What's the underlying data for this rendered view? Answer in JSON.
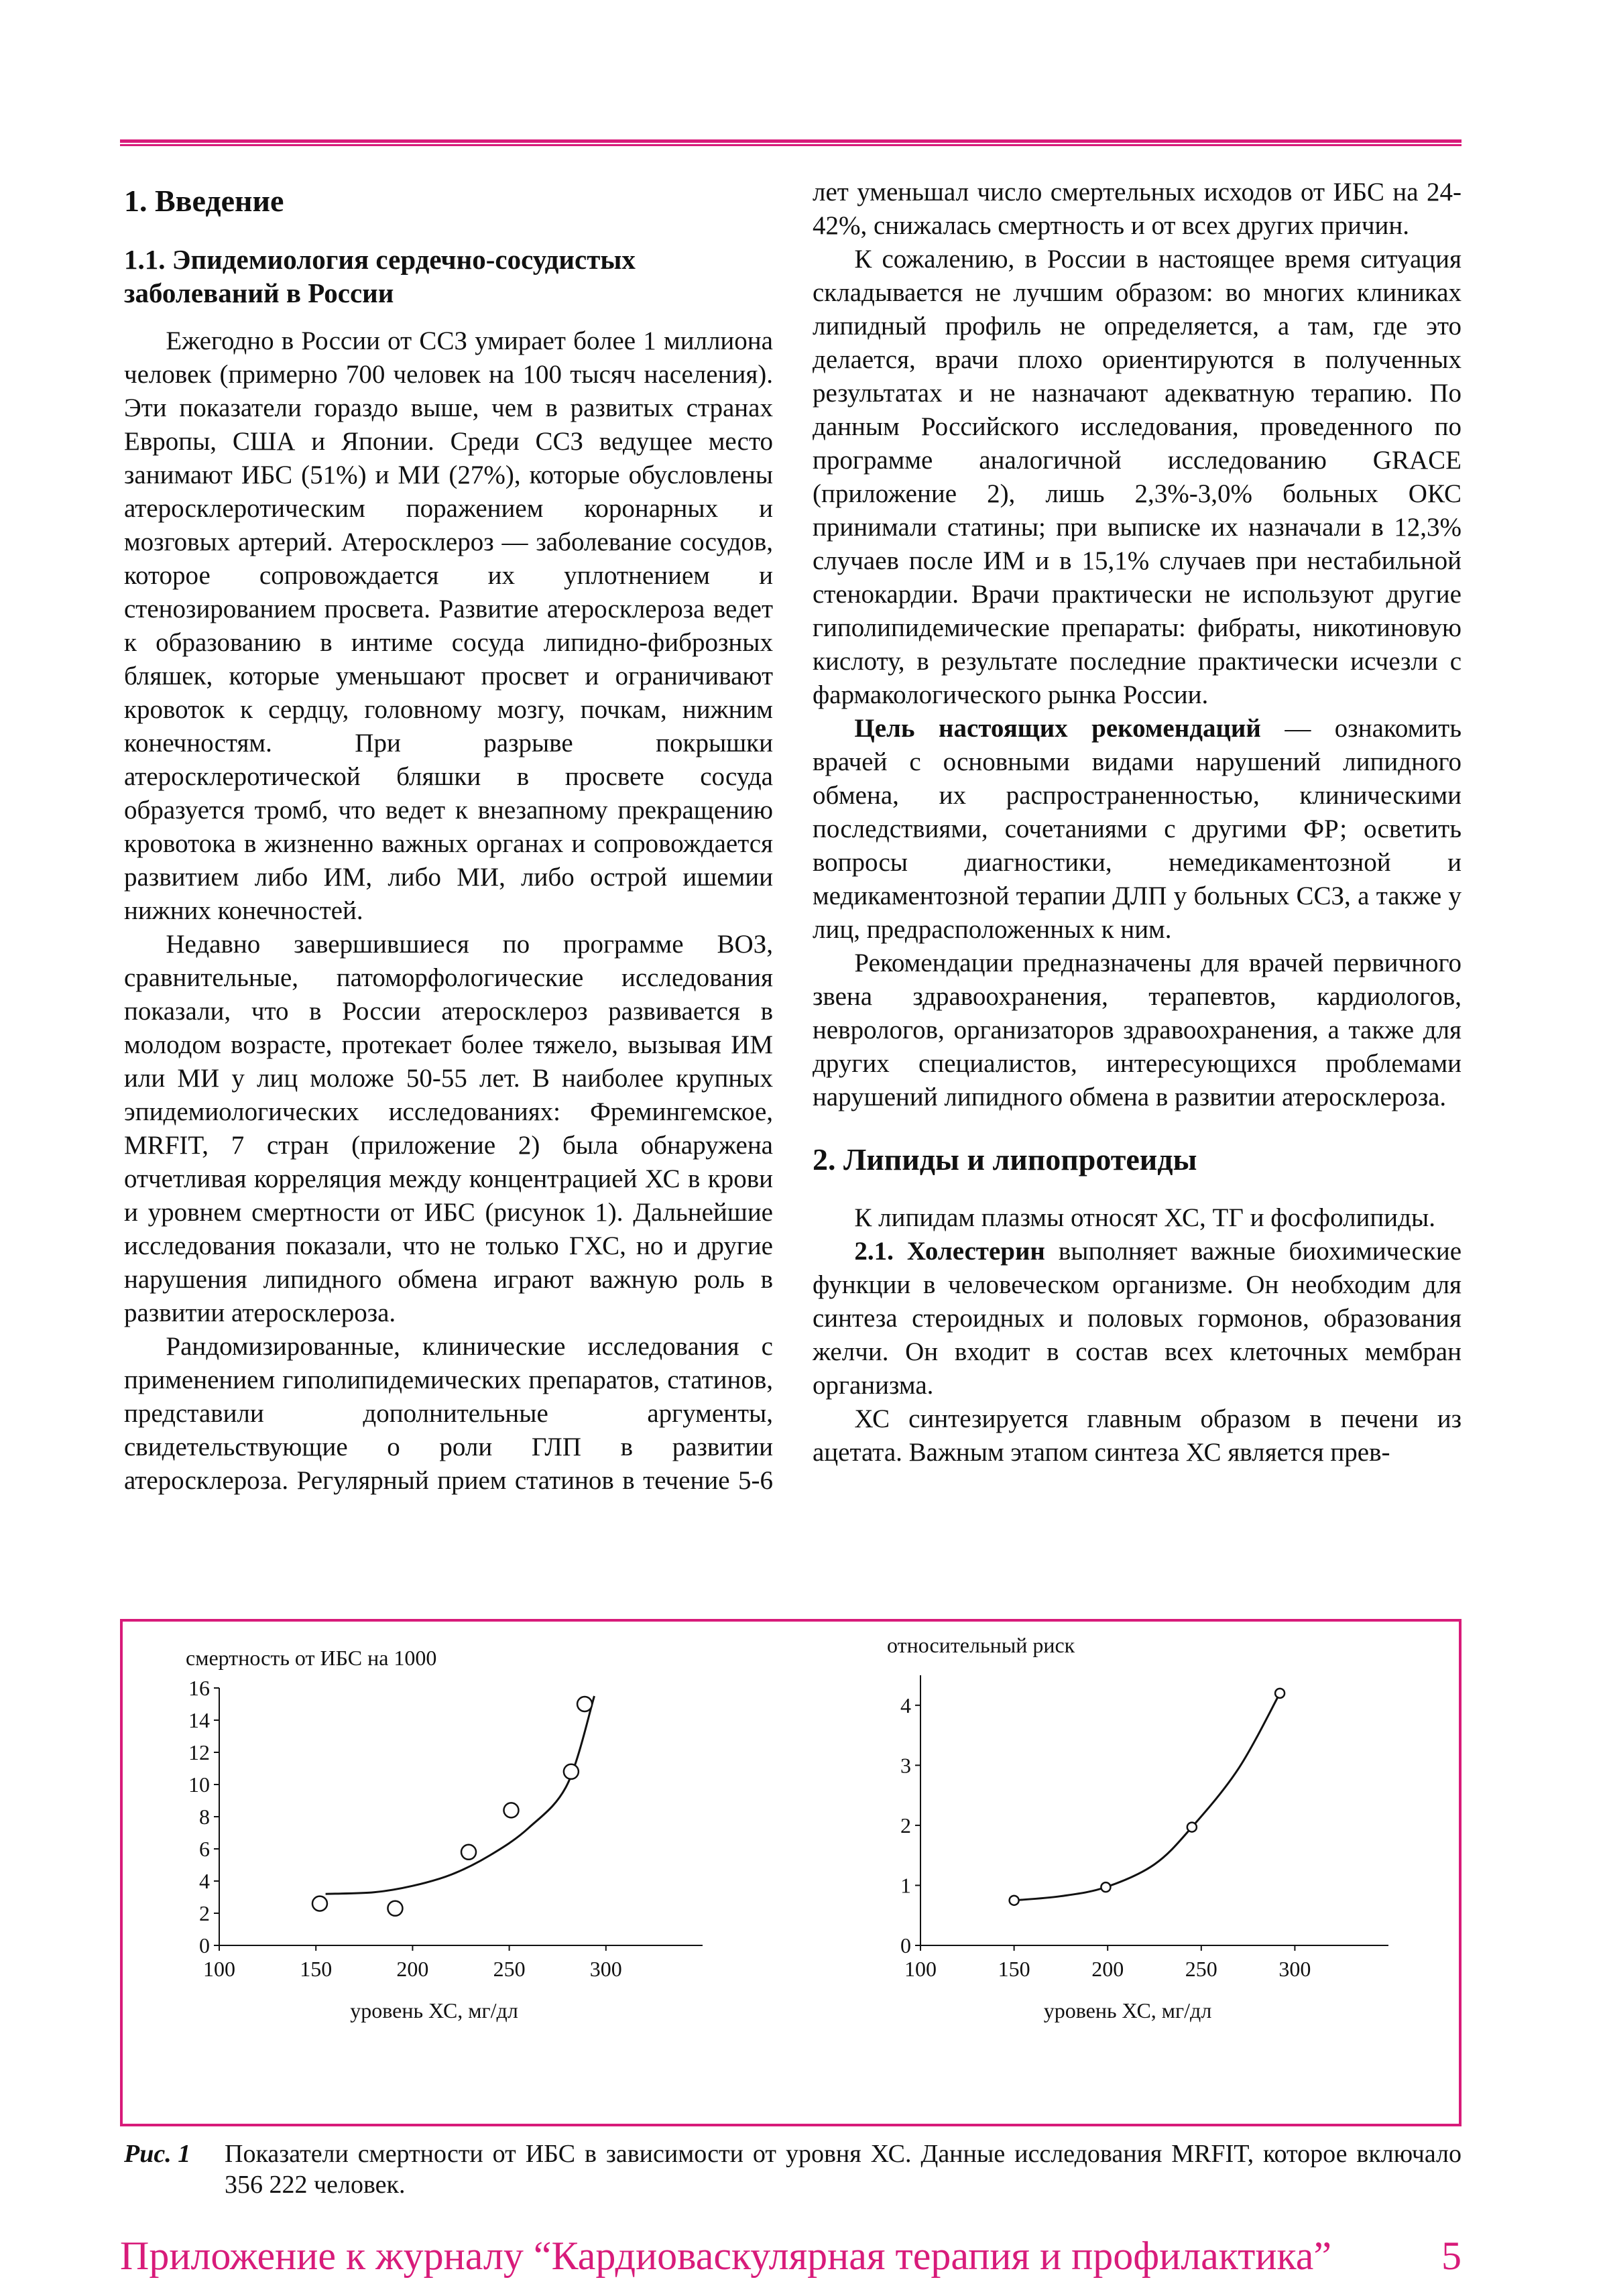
{
  "body": [
    {
      "h1": "1. Введение"
    },
    {
      "h2": "1.1. Эпидемиология сердечно-сосудистых заболеваний в России"
    },
    {
      "p": "Ежегодно в России от ССЗ умирает более 1 миллиона человек (примерно 700 человек на 100 тысяч населения). Эти показатели гораздо выше, чем в развитых странах Европы, США и Японии. Среди ССЗ ведущее место занимают ИБС (51%) и МИ (27%), которые обусловлены атеросклеротическим поражением коронарных и мозговых артерий. Атеросклероз — заболевание сосудов, которое сопровождается их уплотнением и стенозированием просвета. Развитие атеросклероза ведет к образованию в интиме сосуда липидно-фиброзных бляшек, которые уменьшают просвет и ограничивают кровоток к сердцу, головному мозгу, почкам, нижним конечностям. При разрыве покрышки атеросклеротической бляшки в просвете сосуда образуется тромб, что ведет к внезапному прекращению кровотока в жизненно важных органах и сопровождается развитием либо ИМ, либо МИ, либо острой ишемии нижних конечностей."
    },
    {
      "p": "Недавно завершившиеся по программе ВОЗ, сравнительные, патоморфологические исследования показали, что в России атеросклероз развивается в молодом возрасте, протекает более тяжело, вызывая ИМ или МИ у лиц моложе 50-55 лет. В наиболее крупных эпидемиологических исследованиях: Фремингемское, MRFIT, 7 стран (приложение 2) была обнаружена отчетливая корреляция между концентрацией ХС в крови и уровнем смертности от ИБС (рисунок 1). Дальнейшие исследования показали, что не только ГХС, но и другие нарушения липидного обмена играют важную роль в развитии атеросклероза."
    },
    {
      "p": "Рандомизированные, клинические исследования с применением гиполипидемических препаратов, статинов, представили дополнительные аргументы, свидетельствующие о роли ГЛП в развитии атеросклероза. Регулярный прием статинов в течение 5-6 лет уменьшал число смертельных исходов от ИБС на 24-42%, снижалась смертность и от всех других причин."
    },
    {
      "p": "К сожалению, в России в настоящее время ситуация складывается не лучшим образом: во многих клиниках липидный профиль не определяется, а там, где это делается, врачи плохо ориентируются в полученных результатах и не назначают адекватную терапию. По данным Российского исследования, проведенного по программе аналогичной исследованию GRACE (приложение 2), лишь 2,3%-3,0% больных ОКС принимали статины; при выписке их назначали в 12,3% случаев после ИМ и в 15,1% случаев при нестабильной стенокардии. Врачи практически не используют другие гиполипидемические препараты: фибраты, никотиновую кислоту, в результате последние практически исчезли с фармакологического рынка России."
    },
    {
      "lead": "Цель настоящих рекомендаций",
      "p": " — ознакомить врачей с основными видами нарушений липидного обмена, их распространенностью, клиническими последствиями, сочетаниями с другими ФР; осветить вопросы диагностики, немедикаментозной и медикаментозной терапии ДЛП у больных ССЗ, а также у лиц, предрасположенных к ним."
    },
    {
      "p": "Рекомендации предназначены для врачей первичного звена здравоохранения, терапевтов, кардиологов, неврологов, организаторов здравоохранения, а также для других специалистов, интересующихся проблемами нарушений липидного обмена в развитии атеросклероза."
    },
    {
      "h1": "2. Липиды и липопротеиды"
    },
    {
      "p": "К липидам плазмы относят ХС, ТГ и фосфолипиды."
    },
    {
      "lead": "2.1. Холестерин",
      "p": " выполняет важные биохимические функции в человеческом организме. Он необходим для синтеза стероидных и половых гормонов, образования желчи. Он входит в состав всех клеточных мембран организма."
    },
    {
      "p": "ХС синтезируется главным образом в печени из ацетата. Важным этапом синтеза ХС является прев-"
    }
  ],
  "chart_data": [
    {
      "type": "scatter",
      "ylabel": "смертность от ИБС на 1000",
      "xlabel": "уровень ХС, мг/дл",
      "xlim": [
        100,
        350
      ],
      "xticks": [
        100,
        150,
        200,
        250,
        300
      ],
      "ylim": [
        0,
        16
      ],
      "yticks": [
        0,
        2,
        4,
        6,
        8,
        10,
        12,
        14,
        16
      ],
      "series": [
        {
          "type": "scatter",
          "marker": "open",
          "color": "#111111",
          "x": [
            152,
            191,
            229,
            251,
            282,
            289
          ],
          "values": [
            2.6,
            2.3,
            5.8,
            8.4,
            10.8,
            15.0
          ]
        },
        {
          "type": "line",
          "color": "#111111",
          "x": [
            155,
            180,
            200,
            220,
            240,
            260,
            280,
            294
          ],
          "values": [
            3.2,
            3.3,
            3.7,
            4.4,
            5.6,
            7.3,
            10.0,
            15.5
          ]
        }
      ]
    },
    {
      "type": "scatter",
      "ylabel": "относительный риск",
      "xlabel": "уровень ХС, мг/дл",
      "xlim": [
        100,
        350
      ],
      "xticks": [
        100,
        150,
        200,
        250,
        300
      ],
      "ylim": [
        0,
        4.5
      ],
      "yticks": [
        0,
        1,
        2,
        3,
        4
      ],
      "series": [
        {
          "type": "scatter",
          "marker": "small",
          "color": "#111111",
          "x": [
            150,
            199,
            245,
            292
          ],
          "values": [
            0.75,
            0.97,
            1.97,
            4.2
          ]
        },
        {
          "type": "line",
          "color": "#111111",
          "x": [
            150,
            175,
            199,
            225,
            245,
            270,
            292
          ],
          "values": [
            0.75,
            0.82,
            0.97,
            1.35,
            1.97,
            2.95,
            4.2
          ]
        }
      ]
    }
  ],
  "figure": {
    "label": "Рис. 1",
    "caption": "Показатели смертности от ИБС в зависимости от уровня ХС. Данные исследования MRFIT, которое включало 356 222 человек."
  },
  "footer": {
    "journal": "Приложение к журналу “Кардиоваскулярная терапия и профилактика”",
    "page": "5"
  }
}
